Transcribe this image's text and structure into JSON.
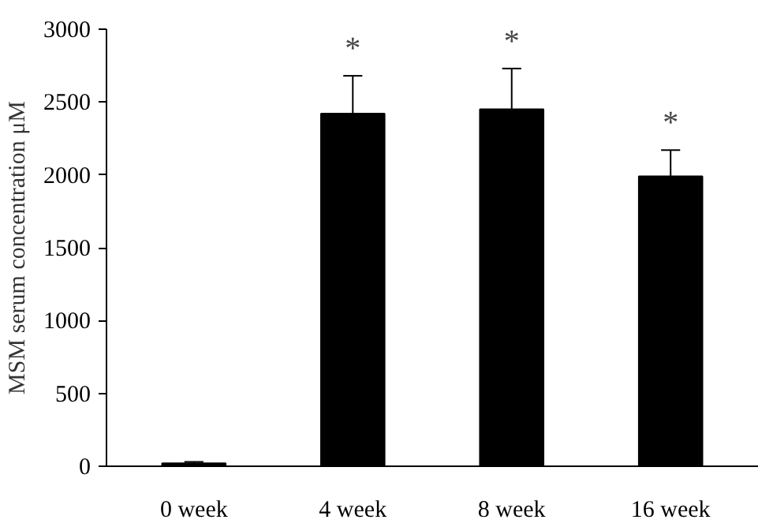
{
  "chart_data": {
    "type": "bar",
    "ylabel": "MSM serum concentration μM",
    "categories": [
      "0 week",
      "4 week",
      "8 week",
      "16 week"
    ],
    "values": [
      20,
      2420,
      2450,
      1990
    ],
    "color": "#000000",
    "errors": [
      10,
      260,
      280,
      180
    ],
    "ylim": [
      0,
      3000
    ],
    "yticks": [
      0,
      500,
      1000,
      1500,
      2000,
      2500,
      3000
    ],
    "grid": false,
    "annotations": [
      "*",
      "*",
      "*"
    ]
  }
}
